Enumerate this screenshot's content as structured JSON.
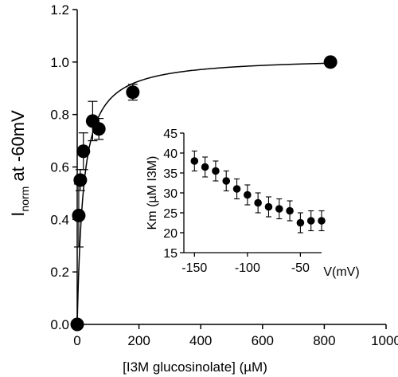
{
  "chart_data": [
    {
      "type": "scatter",
      "title": "",
      "xlabel": "[I3M glucosinolate] (µM)",
      "ylabel": {
        "main": "I",
        "subscript": "norm",
        "suffix": " at -60mV"
      },
      "xlim": [
        0,
        1000
      ],
      "ylim": [
        0,
        1.2
      ],
      "x_ticks": [
        "0",
        "200",
        "400",
        "600",
        "800",
        "1000"
      ],
      "y_ticks": [
        "0.0",
        "0.2",
        "0.4",
        "0.6",
        "0.8",
        "1.0",
        "1.2"
      ],
      "grid": false,
      "legend": "none",
      "marker_color": "#000000",
      "series": [
        {
          "points": [
            {
              "x": 0,
              "y": 0.0,
              "err": 0.0
            },
            {
              "x": 5,
              "y": 0.415,
              "err": 0.12
            },
            {
              "x": 10,
              "y": 0.55,
              "err": 0.04
            },
            {
              "x": 20,
              "y": 0.66,
              "err": 0.07
            },
            {
              "x": 50,
              "y": 0.775,
              "err": 0.075
            },
            {
              "x": 70,
              "y": 0.745,
              "err": 0.04
            },
            {
              "x": 180,
              "y": 0.885,
              "err": 0.03
            },
            {
              "x": 820,
              "y": 1.0,
              "err": 0.0
            }
          ]
        }
      ],
      "fit": {
        "model": "michaelis-menten",
        "vmax": 1.02,
        "km": 20
      }
    },
    {
      "type": "scatter",
      "title": "",
      "xlabel": "V(mV)",
      "ylabel": "Km (µM I3M)",
      "xlim": [
        -160,
        -30
      ],
      "ylim": [
        15,
        45
      ],
      "x_ticks": [
        "-150",
        "-100",
        "-50"
      ],
      "y_ticks": [
        "15",
        "20",
        "25",
        "30",
        "35",
        "40",
        "45"
      ],
      "grid": false,
      "legend": "none",
      "marker_color": "#000000",
      "series": [
        {
          "points": [
            {
              "x": -150,
              "y": 38.0,
              "err": 2.5
            },
            {
              "x": -140,
              "y": 36.5,
              "err": 2.5
            },
            {
              "x": -130,
              "y": 35.5,
              "err": 2.5
            },
            {
              "x": -120,
              "y": 33.0,
              "err": 2.5
            },
            {
              "x": -110,
              "y": 31.0,
              "err": 2.5
            },
            {
              "x": -100,
              "y": 29.5,
              "err": 2.5
            },
            {
              "x": -90,
              "y": 27.5,
              "err": 2.5
            },
            {
              "x": -80,
              "y": 26.5,
              "err": 2.5
            },
            {
              "x": -70,
              "y": 26.0,
              "err": 2.5
            },
            {
              "x": -60,
              "y": 25.5,
              "err": 2.5
            },
            {
              "x": -50,
              "y": 22.5,
              "err": 2.5
            },
            {
              "x": -40,
              "y": 23.0,
              "err": 2.5
            },
            {
              "x": -30,
              "y": 23.0,
              "err": 2.5
            }
          ]
        }
      ]
    }
  ]
}
